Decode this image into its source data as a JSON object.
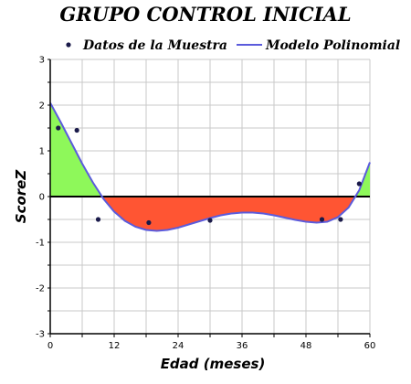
{
  "chart_data": {
    "type": "scatter",
    "title": "GRUPO CONTROL INICIAL",
    "xlabel": "Edad (meses)",
    "ylabel": "ScoreZ",
    "xlim": [
      0,
      60
    ],
    "ylim": [
      -3,
      3
    ],
    "x_ticks": [
      "0",
      "12",
      "24",
      "36",
      "48",
      "60"
    ],
    "y_ticks": [
      "3",
      "2",
      "1",
      "0",
      "-1",
      "-2",
      "-3"
    ],
    "grid": true,
    "legend_position": "top",
    "series": [
      {
        "name": "Datos de la Muestra",
        "kind": "scatter",
        "color": "#1a1a4a",
        "points": [
          [
            1.5,
            1.5
          ],
          [
            5,
            1.45
          ],
          [
            9,
            -0.5
          ],
          [
            18.5,
            -0.57
          ],
          [
            30,
            -0.52
          ],
          [
            51,
            -0.5
          ],
          [
            54.5,
            -0.5
          ],
          [
            58,
            0.28
          ]
        ]
      },
      {
        "name": "Modelo Polinomial",
        "kind": "line",
        "color": "#5b5bdc",
        "points": [
          [
            0,
            2.05
          ],
          [
            2,
            1.62
          ],
          [
            4,
            1.17
          ],
          [
            6,
            0.72
          ],
          [
            8,
            0.31
          ],
          [
            10,
            -0.05
          ],
          [
            12,
            -0.33
          ],
          [
            14,
            -0.53
          ],
          [
            16,
            -0.66
          ],
          [
            18,
            -0.73
          ],
          [
            20,
            -0.75
          ],
          [
            22,
            -0.73
          ],
          [
            24,
            -0.68
          ],
          [
            26,
            -0.61
          ],
          [
            28,
            -0.54
          ],
          [
            30,
            -0.47
          ],
          [
            32,
            -0.41
          ],
          [
            34,
            -0.37
          ],
          [
            36,
            -0.35
          ],
          [
            38,
            -0.35
          ],
          [
            40,
            -0.37
          ],
          [
            42,
            -0.41
          ],
          [
            44,
            -0.46
          ],
          [
            46,
            -0.51
          ],
          [
            48,
            -0.55
          ],
          [
            50,
            -0.57
          ],
          [
            52,
            -0.55
          ],
          [
            54,
            -0.45
          ],
          [
            56,
            -0.24
          ],
          [
            58,
            0.14
          ],
          [
            60,
            0.75
          ]
        ]
      }
    ],
    "fill_colors": {
      "positive": "#8ef85a",
      "negative": "#ff5533"
    }
  }
}
